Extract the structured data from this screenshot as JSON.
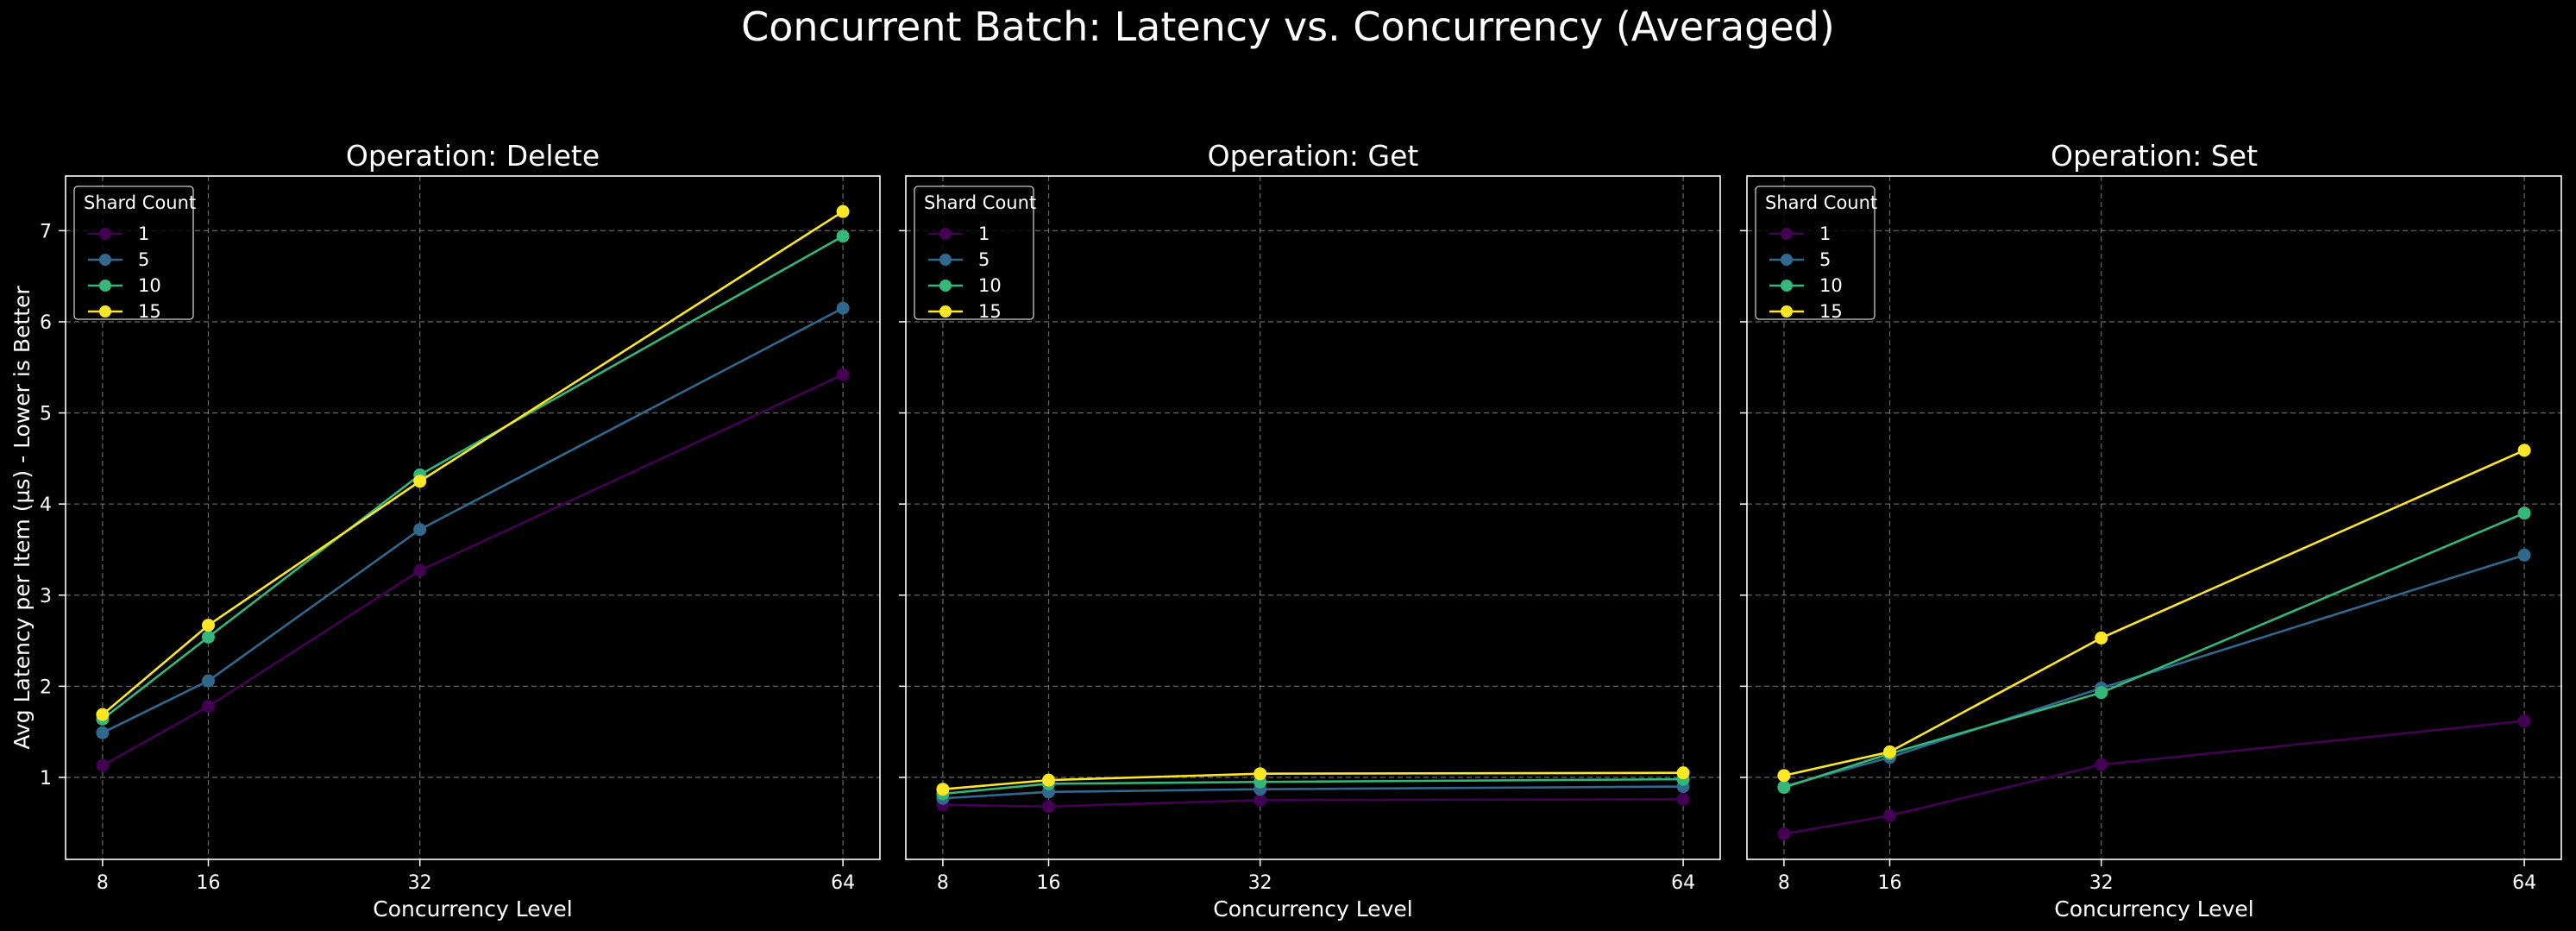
{
  "figure": {
    "title": "Concurrent Batch: Latency vs. Concurrency (Averaged)",
    "background": "#000000",
    "axis_color": "#ffffff",
    "grid_color": "#b0b0b0"
  },
  "chart_data": [
    {
      "type": "line",
      "title": "Operation: Delete",
      "xlabel": "Concurrency Level",
      "ylabel": "Avg Latency per Item (µs) - Lower is Better",
      "x": [
        8,
        16,
        32,
        64
      ],
      "xticks": [
        "8",
        "16",
        "32",
        "64"
      ],
      "xlim": [
        5.2,
        66.8
      ],
      "ylim": [
        0.1,
        7.6
      ],
      "yticks": [
        "1",
        "2",
        "3",
        "4",
        "5",
        "6",
        "7"
      ],
      "grid": true,
      "legend_title": "Shard Count",
      "legend_position": "upper left",
      "series": [
        {
          "name": "1",
          "color": "#440154",
          "values": [
            1.13,
            1.78,
            3.27,
            5.42
          ]
        },
        {
          "name": "5",
          "color": "#31688e",
          "values": [
            1.49,
            2.06,
            3.72,
            6.15
          ]
        },
        {
          "name": "10",
          "color": "#35b779",
          "values": [
            1.64,
            2.54,
            4.32,
            6.94
          ]
        },
        {
          "name": "15",
          "color": "#fde725",
          "values": [
            1.69,
            2.67,
            4.25,
            7.21
          ]
        }
      ]
    },
    {
      "type": "line",
      "title": "Operation: Get",
      "xlabel": "Concurrency Level",
      "ylabel": "",
      "x": [
        8,
        16,
        32,
        64
      ],
      "xticks": [
        "8",
        "16",
        "32",
        "64"
      ],
      "xlim": [
        5.2,
        66.8
      ],
      "ylim": [
        0.1,
        7.6
      ],
      "yticks": [],
      "grid": true,
      "legend_title": "Shard Count",
      "legend_position": "upper left",
      "series": [
        {
          "name": "1",
          "color": "#440154",
          "values": [
            0.7,
            0.68,
            0.75,
            0.76
          ]
        },
        {
          "name": "5",
          "color": "#31688e",
          "values": [
            0.77,
            0.84,
            0.87,
            0.9
          ]
        },
        {
          "name": "10",
          "color": "#35b779",
          "values": [
            0.82,
            0.93,
            0.95,
            0.98
          ]
        },
        {
          "name": "15",
          "color": "#fde725",
          "values": [
            0.87,
            0.97,
            1.04,
            1.05
          ]
        }
      ]
    },
    {
      "type": "line",
      "title": "Operation: Set",
      "xlabel": "Concurrency Level",
      "ylabel": "",
      "x": [
        8,
        16,
        32,
        64
      ],
      "xticks": [
        "8",
        "16",
        "32",
        "64"
      ],
      "xlim": [
        5.2,
        66.8
      ],
      "ylim": [
        0.1,
        7.6
      ],
      "yticks": [],
      "grid": true,
      "legend_title": "Shard Count",
      "legend_position": "upper left",
      "series": [
        {
          "name": "1",
          "color": "#440154",
          "values": [
            0.38,
            0.58,
            1.14,
            1.62
          ]
        },
        {
          "name": "5",
          "color": "#31688e",
          "values": [
            0.9,
            1.22,
            1.98,
            3.44
          ]
        },
        {
          "name": "10",
          "color": "#35b779",
          "values": [
            0.89,
            1.26,
            1.93,
            3.9
          ]
        },
        {
          "name": "15",
          "color": "#fde725",
          "values": [
            1.02,
            1.28,
            2.53,
            4.59
          ]
        }
      ]
    }
  ]
}
